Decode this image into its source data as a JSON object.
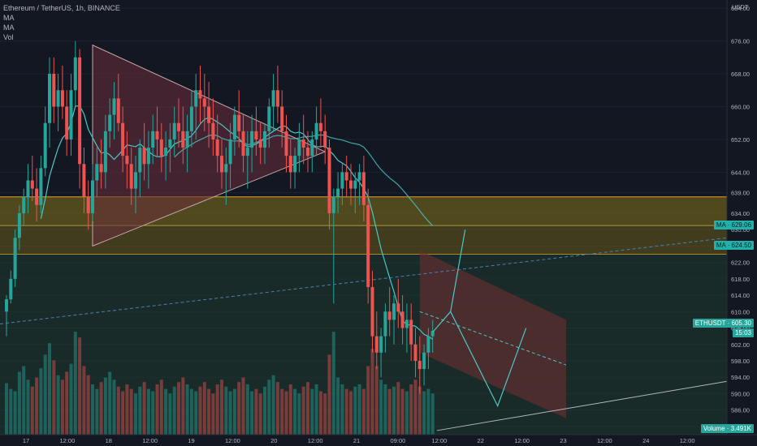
{
  "legend": {
    "symbol": "Ethereum / TetherUS, 1h, BINANCE",
    "ma1": "MA",
    "ma2": "MA",
    "vol": "Vol"
  },
  "tags": {
    "ma_top": "MA · 629.06",
    "ma_bottom": "MA · 624.50",
    "price_label": "ETHUSDT · 605.30",
    "countdown": "15:03",
    "vol_label": "Volume · 3.491K"
  },
  "colors": {
    "background": "#131722",
    "up": "#26a69a",
    "down": "#ef5350",
    "ma_fast": "#4dc7c7",
    "ma_slow": "#4dc7c7",
    "zone_fill": "#7a6b1a",
    "zone_edge": "#e0a12a",
    "green_fill": "#1f3d2f",
    "channel_fill": "#6a2e2e",
    "triangle_fill": "#6a2e3a",
    "drawing": "#a7b3c2"
  },
  "chart_data": {
    "type": "candlestick",
    "currency": "USDT",
    "y_ticks": [
      582,
      586,
      590,
      594,
      598,
      602,
      606,
      610,
      614,
      618,
      622,
      626,
      630,
      634,
      639,
      644,
      652,
      660,
      668,
      676,
      684
    ],
    "x_tick_labels": [
      "17",
      "12:00",
      "18",
      "12:00",
      "19",
      "12:00",
      "20",
      "12:00",
      "21",
      "09:00",
      "12:00",
      "22",
      "12:00",
      "23",
      "12:00",
      "24",
      "12:00"
    ],
    "ylim": [
      580,
      686
    ],
    "bars_per_day": 24,
    "resistance_zone": [
      631.0,
      638.0
    ],
    "support_zone": [
      624.0,
      631.0
    ],
    "ma_fast_last": 629.06,
    "ma_slow_last": 624.5,
    "last_price": 605.3,
    "candles": [
      [
        610,
        614,
        604,
        613
      ],
      [
        613,
        620,
        612,
        618
      ],
      [
        618,
        630,
        616,
        628
      ],
      [
        628,
        636,
        625,
        634
      ],
      [
        634,
        640,
        631,
        638
      ],
      [
        638,
        646,
        634,
        642
      ],
      [
        642,
        648,
        637,
        640
      ],
      [
        640,
        645,
        632,
        636
      ],
      [
        636,
        648,
        634,
        645
      ],
      [
        645,
        660,
        643,
        656
      ],
      [
        656,
        672,
        650,
        668
      ],
      [
        668,
        672,
        656,
        660
      ],
      [
        660,
        668,
        654,
        664
      ],
      [
        664,
        670,
        657,
        660
      ],
      [
        660,
        664,
        648,
        652
      ],
      [
        652,
        668,
        648,
        664
      ],
      [
        664,
        676,
        660,
        672
      ],
      [
        672,
        674,
        640,
        646
      ],
      [
        646,
        650,
        634,
        638
      ],
      [
        638,
        642,
        630,
        634
      ],
      [
        634,
        646,
        632,
        642
      ],
      [
        642,
        650,
        638,
        646
      ],
      [
        646,
        652,
        640,
        644
      ],
      [
        644,
        658,
        640,
        654
      ],
      [
        654,
        662,
        650,
        658
      ],
      [
        658,
        666,
        652,
        662
      ],
      [
        662,
        668,
        654,
        656
      ],
      [
        656,
        660,
        644,
        648
      ],
      [
        648,
        654,
        640,
        646
      ],
      [
        646,
        650,
        636,
        640
      ],
      [
        640,
        648,
        634,
        644
      ],
      [
        644,
        652,
        638,
        650
      ],
      [
        650,
        656,
        642,
        646
      ],
      [
        646,
        654,
        640,
        650
      ],
      [
        650,
        658,
        646,
        654
      ],
      [
        654,
        660,
        648,
        652
      ],
      [
        652,
        656,
        644,
        648
      ],
      [
        648,
        654,
        642,
        650
      ],
      [
        650,
        656,
        644,
        652
      ],
      [
        652,
        660,
        648,
        656
      ],
      [
        656,
        662,
        650,
        654
      ],
      [
        654,
        660,
        646,
        650
      ],
      [
        650,
        658,
        644,
        654
      ],
      [
        654,
        664,
        650,
        660
      ],
      [
        660,
        668,
        652,
        664
      ],
      [
        664,
        670,
        656,
        662
      ],
      [
        662,
        668,
        654,
        660
      ],
      [
        660,
        666,
        650,
        656
      ],
      [
        656,
        662,
        648,
        652
      ],
      [
        652,
        658,
        644,
        648
      ],
      [
        648,
        652,
        640,
        644
      ],
      [
        644,
        650,
        636,
        646
      ],
      [
        646,
        656,
        640,
        652
      ],
      [
        652,
        660,
        648,
        658
      ],
      [
        658,
        664,
        650,
        654
      ],
      [
        654,
        658,
        644,
        648
      ],
      [
        648,
        654,
        640,
        650
      ],
      [
        650,
        658,
        644,
        654
      ],
      [
        654,
        660,
        648,
        652
      ],
      [
        652,
        656,
        646,
        650
      ],
      [
        650,
        656,
        646,
        654
      ],
      [
        654,
        662,
        650,
        660
      ],
      [
        660,
        668,
        654,
        664
      ],
      [
        664,
        670,
        656,
        660
      ],
      [
        660,
        664,
        650,
        654
      ],
      [
        654,
        658,
        644,
        648
      ],
      [
        648,
        652,
        640,
        644
      ],
      [
        644,
        650,
        640,
        648
      ],
      [
        648,
        656,
        644,
        652
      ],
      [
        652,
        658,
        646,
        650
      ],
      [
        650,
        654,
        644,
        648
      ],
      [
        648,
        654,
        644,
        652
      ],
      [
        652,
        660,
        648,
        656
      ],
      [
        656,
        662,
        650,
        654
      ],
      [
        654,
        658,
        646,
        650
      ],
      [
        650,
        652,
        630,
        634
      ],
      [
        634,
        640,
        612,
        638
      ],
      [
        638,
        644,
        634,
        640
      ],
      [
        640,
        646,
        636,
        644
      ],
      [
        644,
        648,
        638,
        642
      ],
      [
        642,
        646,
        636,
        640
      ],
      [
        640,
        644,
        634,
        642
      ],
      [
        642,
        646,
        636,
        644
      ],
      [
        644,
        648,
        632,
        636
      ],
      [
        636,
        640,
        612,
        616
      ],
      [
        616,
        620,
        600,
        604
      ],
      [
        604,
        610,
        596,
        600
      ],
      [
        600,
        606,
        594,
        604
      ],
      [
        604,
        612,
        600,
        610
      ],
      [
        610,
        616,
        604,
        608
      ],
      [
        608,
        614,
        602,
        612
      ],
      [
        612,
        618,
        606,
        610
      ],
      [
        610,
        614,
        602,
        606
      ],
      [
        606,
        612,
        600,
        608
      ],
      [
        608,
        612,
        598,
        602
      ],
      [
        602,
        606,
        594,
        598
      ],
      [
        598,
        604,
        590,
        596
      ],
      [
        596,
        602,
        592,
        600
      ],
      [
        600,
        606,
        596,
        604
      ],
      [
        604,
        608,
        600,
        605.3
      ]
    ],
    "volume_max": 100,
    "volumes": [
      45,
      40,
      38,
      55,
      60,
      48,
      42,
      50,
      58,
      70,
      80,
      65,
      52,
      48,
      55,
      62,
      90,
      85,
      60,
      52,
      44,
      40,
      46,
      50,
      55,
      48,
      42,
      38,
      44,
      40,
      36,
      42,
      46,
      40,
      38,
      44,
      48,
      40,
      36,
      42,
      46,
      50,
      44,
      40,
      38,
      42,
      46,
      40,
      36,
      44,
      48,
      42,
      38,
      40,
      46,
      50,
      44,
      38,
      40,
      36,
      42,
      48,
      52,
      46,
      40,
      38,
      44,
      40,
      36,
      42,
      46,
      40,
      44,
      38,
      36,
      70,
      90,
      50,
      44,
      40,
      38,
      42,
      44,
      40,
      60,
      75,
      60,
      48,
      44,
      40,
      42,
      46,
      40,
      38,
      44,
      48,
      42,
      38,
      40,
      36
    ]
  }
}
